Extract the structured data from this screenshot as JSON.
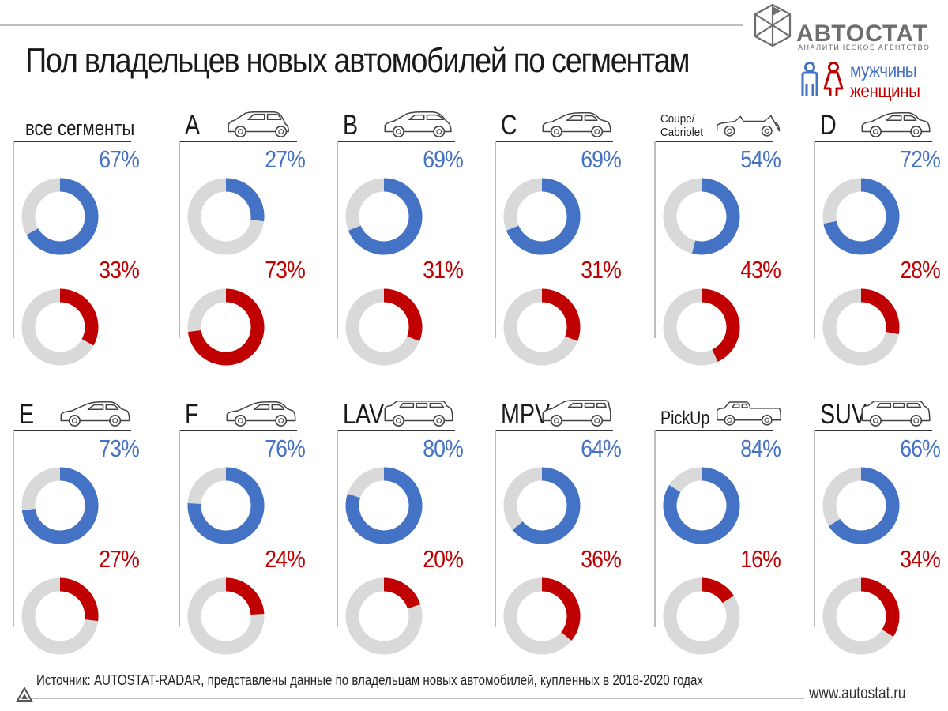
{
  "header": {
    "title": "Пол владельцев новых автомобилей по сегментам",
    "logo_name": "АВТОСТАТ",
    "logo_sub": "АНАЛИТИЧЕСКОЕ АГЕНТСТВО",
    "legend_men": "мужчины",
    "legend_women": "женщины"
  },
  "colors": {
    "men": "#4472c4",
    "women": "#c00000",
    "track": "#d9d9d9"
  },
  "chart_data": {
    "type": "pie",
    "subtype": "donut",
    "title": "Пол владельцев новых автомобилей по сегментам",
    "series": [
      {
        "name": "мужчины",
        "color": "#4472c4"
      },
      {
        "name": "женщины",
        "color": "#c00000"
      }
    ],
    "segments": [
      {
        "label": "все сегменты",
        "icon": "none",
        "men": 67,
        "women": 33,
        "men_label": "67%",
        "women_label": "33%"
      },
      {
        "label": "A",
        "icon": "car-hatchback-small-icon",
        "men": 27,
        "women": 73,
        "men_label": "27%",
        "women_label": "73%"
      },
      {
        "label": "B",
        "icon": "car-hatchback-icon",
        "men": 69,
        "women": 31,
        "men_label": "69%",
        "women_label": "31%"
      },
      {
        "label": "C",
        "icon": "car-sedan-icon",
        "men": 69,
        "women": 31,
        "men_label": "69%",
        "women_label": "31%"
      },
      {
        "label": "Coupe/\nCabriolet",
        "icon": "car-cabriolet-icon",
        "men": 54,
        "women": 43,
        "men_label": "54%",
        "women_label": "43%"
      },
      {
        "label": "D",
        "icon": "car-sedan-icon",
        "men": 72,
        "women": 28,
        "men_label": "72%",
        "women_label": "28%"
      },
      {
        "label": "E",
        "icon": "car-sedan-long-icon",
        "men": 73,
        "women": 27,
        "men_label": "73%",
        "women_label": "27%"
      },
      {
        "label": "F",
        "icon": "car-sedan-long-icon",
        "men": 76,
        "women": 24,
        "men_label": "76%",
        "women_label": "24%"
      },
      {
        "label": "LAV",
        "icon": "car-suv-icon",
        "men": 80,
        "women": 20,
        "men_label": "80%",
        "women_label": "20%"
      },
      {
        "label": "MPV",
        "icon": "car-minivan-icon",
        "men": 64,
        "women": 36,
        "men_label": "64%",
        "women_label": "36%"
      },
      {
        "label": "PickUp",
        "icon": "car-pickup-icon",
        "men": 84,
        "women": 16,
        "men_label": "84%",
        "women_label": "16%"
      },
      {
        "label": "SUV",
        "icon": "car-suv-icon",
        "men": 66,
        "women": 34,
        "men_label": "66%",
        "women_label": "34%"
      }
    ],
    "legend_position": "top-right"
  },
  "footer": {
    "source": "Источник: AUTOSTAT-RADAR, представлены данные по владельцам новых автомобилей, купленных в 2018-2020 годах",
    "site": "www.autostat.ru"
  }
}
